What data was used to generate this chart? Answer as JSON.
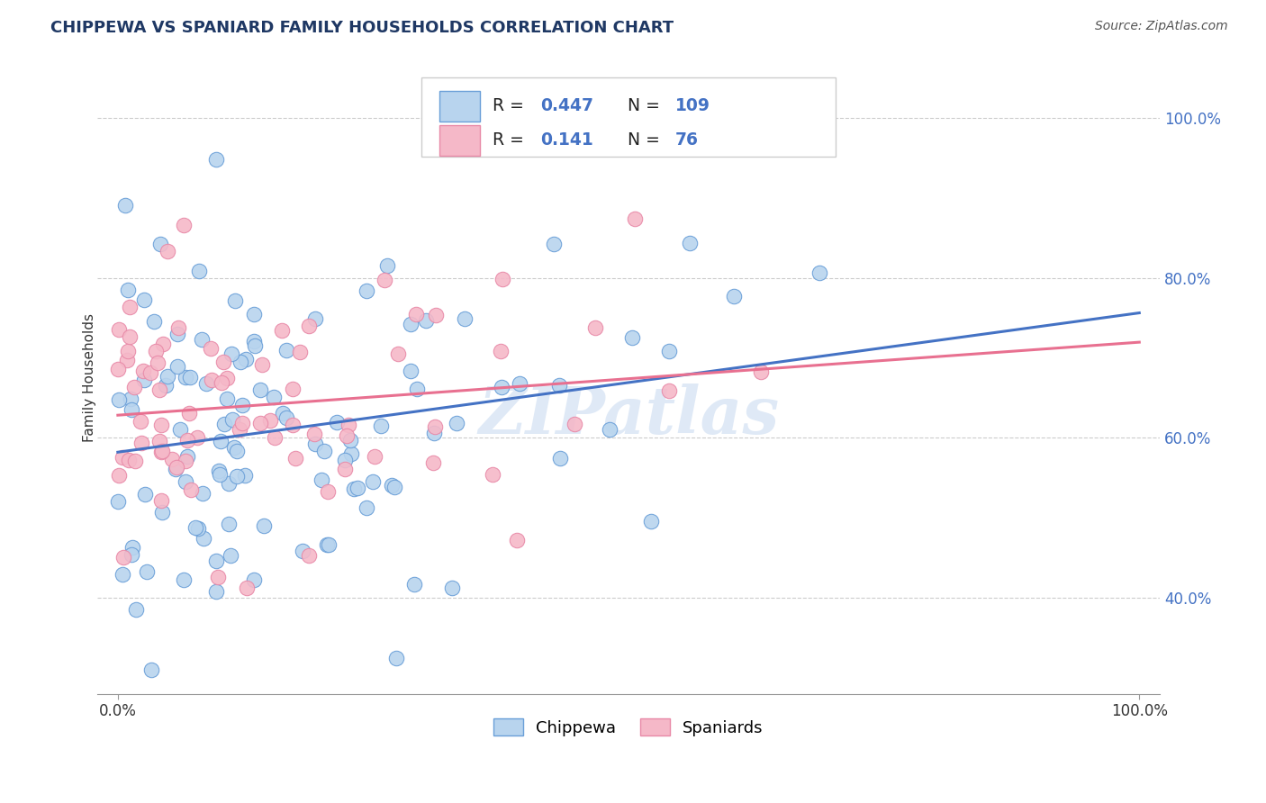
{
  "title": "CHIPPEWA VS SPANIARD FAMILY HOUSEHOLDS CORRELATION CHART",
  "source": "Source: ZipAtlas.com",
  "ylabel": "Family Households",
  "chippewa_R": 0.447,
  "chippewa_N": 109,
  "spaniard_R": 0.141,
  "spaniard_N": 76,
  "chippewa_color": "#b8d4ee",
  "spaniard_color": "#f5b8c8",
  "chippewa_edge_color": "#6a9fd8",
  "spaniard_edge_color": "#e88aa8",
  "chippewa_line_color": "#4472c4",
  "spaniard_line_color": "#e87090",
  "title_color": "#1f3864",
  "axis_label_color": "#4472c4",
  "tick_label_color": "#4472c4",
  "watermark_color": "#c5d8f0",
  "watermark_text": "ZIPatlas",
  "background_color": "#ffffff",
  "grid_color": "#cccccc",
  "legend_edge_color": "#cccccc",
  "bottom_border_color": "#999999",
  "yticks": [
    40,
    60,
    80,
    100
  ],
  "ytick_labels": [
    "40.0%",
    "60.0%",
    "80.0%",
    "100.0%"
  ],
  "xlim": [
    0,
    100
  ],
  "ylim": [
    28,
    107
  ]
}
